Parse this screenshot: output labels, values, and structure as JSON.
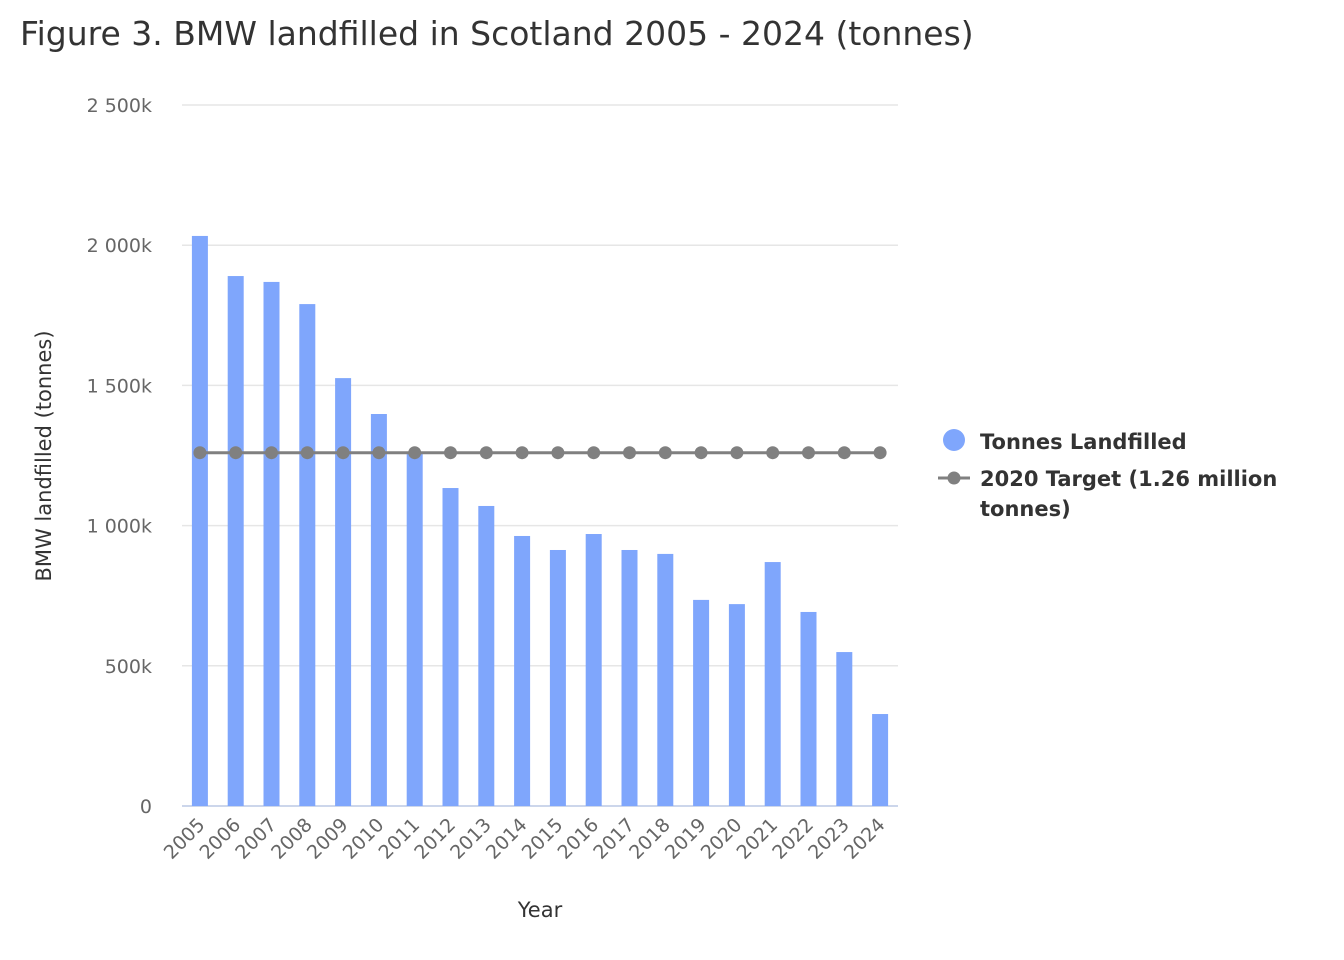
{
  "chart_data": {
    "type": "bar",
    "title": "Figure 3. BMW landfilled in Scotland 2005 - 2024 (tonnes)",
    "xlabel": "Year",
    "ylabel": "BMW landfilled (tonnes)",
    "ylim": [
      0,
      2500000
    ],
    "yticks": [
      0,
      500000,
      1000000,
      1500000,
      2000000,
      2500000
    ],
    "ytick_labels": [
      "0",
      "500k",
      "1 000k",
      "1 500k",
      "2 000k",
      "2 500k"
    ],
    "grid": true,
    "legend_position": "right",
    "categories": [
      "2005",
      "2006",
      "2007",
      "2008",
      "2009",
      "2010",
      "2011",
      "2012",
      "2013",
      "2014",
      "2015",
      "2016",
      "2017",
      "2018",
      "2019",
      "2020",
      "2021",
      "2022",
      "2023",
      "2024"
    ],
    "series": [
      {
        "name": "Tonnes Landfilled",
        "type": "bar",
        "color": "#7fa6fc",
        "values": [
          2033000,
          1890000,
          1869000,
          1790000,
          1526000,
          1398000,
          1262000,
          1134000,
          1070000,
          963000,
          913000,
          970000,
          913000,
          899000,
          735000,
          720000,
          870000,
          692000,
          549000,
          328000
        ]
      },
      {
        "name": "2020 Target (1.26 million tonnes)",
        "legend_lines": [
          "2020 Target (1.26 million",
          "tonnes)"
        ],
        "type": "line",
        "color": "#808080",
        "values": [
          1260000,
          1260000,
          1260000,
          1260000,
          1260000,
          1260000,
          1260000,
          1260000,
          1260000,
          1260000,
          1260000,
          1260000,
          1260000,
          1260000,
          1260000,
          1260000,
          1260000,
          1260000,
          1260000,
          1260000
        ]
      }
    ]
  }
}
